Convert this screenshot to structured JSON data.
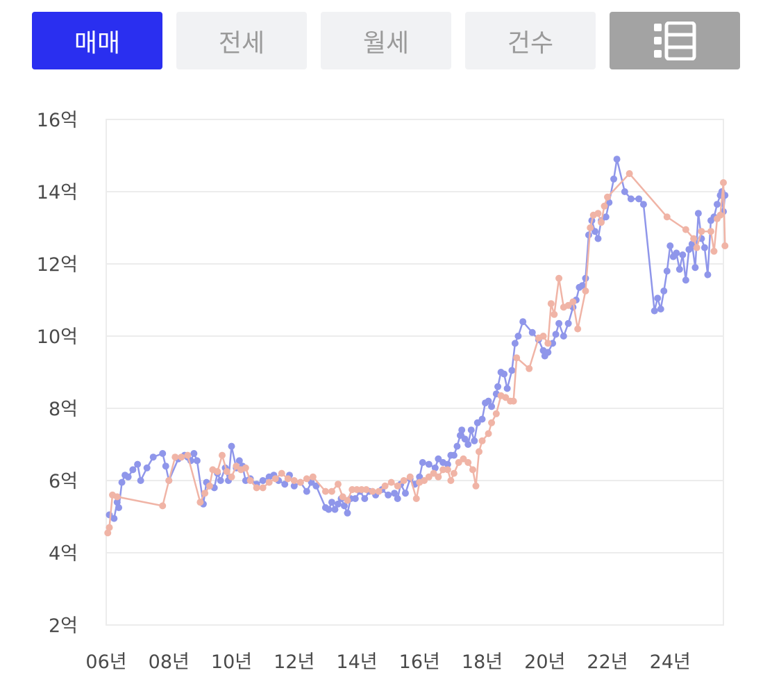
{
  "tabs": [
    {
      "label": "매매",
      "active": true
    },
    {
      "label": "전세",
      "active": false
    },
    {
      "label": "월세",
      "active": false
    },
    {
      "label": "건수",
      "active": false
    }
  ],
  "list_button_icon": "list-view-icon",
  "colors": {
    "active_tab": "#2a2ff0",
    "inactive_tab_bg": "#f1f2f4",
    "inactive_tab_text": "#9a9a9a",
    "list_button_bg": "#a3a3a3",
    "series_1": "#8f96ea",
    "series_2": "#f0b4a6"
  },
  "chart_data": {
    "type": "line",
    "title": "",
    "xlabel": "",
    "ylabel": "",
    "ylim": [
      2,
      16
    ],
    "xlim": [
      2006.0,
      2025.7
    ],
    "yticks": [
      {
        "value": 16,
        "label": "16억"
      },
      {
        "value": 14,
        "label": "14억"
      },
      {
        "value": 12,
        "label": "12억"
      },
      {
        "value": 10,
        "label": "10억"
      },
      {
        "value": 8,
        "label": "8억"
      },
      {
        "value": 6,
        "label": "6억"
      },
      {
        "value": 4,
        "label": "4억"
      },
      {
        "value": 2,
        "label": "2억"
      }
    ],
    "xticks": [
      {
        "value": 2006,
        "label": "06년"
      },
      {
        "value": 2008,
        "label": "08년"
      },
      {
        "value": 2010,
        "label": "10년"
      },
      {
        "value": 2012,
        "label": "12년"
      },
      {
        "value": 2014,
        "label": "14년"
      },
      {
        "value": 2016,
        "label": "16년"
      },
      {
        "value": 2018,
        "label": "18년"
      },
      {
        "value": 2020,
        "label": "20년"
      },
      {
        "value": 2022,
        "label": "22년"
      },
      {
        "value": 2024,
        "label": "24년"
      }
    ],
    "grid": true,
    "series": [
      {
        "color": "#8f96ea",
        "points": [
          [
            2006.1,
            5.05
          ],
          [
            2006.25,
            4.95
          ],
          [
            2006.35,
            5.4
          ],
          [
            2006.4,
            5.25
          ],
          [
            2006.5,
            5.95
          ],
          [
            2006.6,
            6.15
          ],
          [
            2006.7,
            6.1
          ],
          [
            2006.85,
            6.3
          ],
          [
            2007.0,
            6.45
          ],
          [
            2007.1,
            6.0
          ],
          [
            2007.3,
            6.35
          ],
          [
            2007.5,
            6.65
          ],
          [
            2007.8,
            6.75
          ],
          [
            2007.9,
            6.4
          ],
          [
            2008.0,
            6.0
          ],
          [
            2008.3,
            6.6
          ],
          [
            2008.5,
            6.7
          ],
          [
            2008.6,
            6.65
          ],
          [
            2008.7,
            6.55
          ],
          [
            2008.8,
            6.75
          ],
          [
            2008.9,
            6.55
          ],
          [
            2009.1,
            5.35
          ],
          [
            2009.2,
            5.95
          ],
          [
            2009.3,
            5.85
          ],
          [
            2009.45,
            5.8
          ],
          [
            2009.55,
            6.2
          ],
          [
            2009.65,
            6.0
          ],
          [
            2009.8,
            6.35
          ],
          [
            2009.9,
            6.0
          ],
          [
            2010.0,
            6.95
          ],
          [
            2010.15,
            6.35
          ],
          [
            2010.25,
            6.55
          ],
          [
            2010.35,
            6.4
          ],
          [
            2010.45,
            6.0
          ],
          [
            2010.6,
            6.05
          ],
          [
            2010.8,
            5.9
          ],
          [
            2011.0,
            6.0
          ],
          [
            2011.2,
            6.1
          ],
          [
            2011.35,
            6.15
          ],
          [
            2011.5,
            6.0
          ],
          [
            2011.7,
            5.9
          ],
          [
            2011.85,
            6.15
          ],
          [
            2012.0,
            5.85
          ],
          [
            2012.2,
            5.95
          ],
          [
            2012.4,
            5.7
          ],
          [
            2012.55,
            5.95
          ],
          [
            2012.7,
            5.85
          ],
          [
            2013.0,
            5.25
          ],
          [
            2013.1,
            5.2
          ],
          [
            2013.2,
            5.4
          ],
          [
            2013.3,
            5.2
          ],
          [
            2013.4,
            5.35
          ],
          [
            2013.5,
            5.5
          ],
          [
            2013.6,
            5.3
          ],
          [
            2013.7,
            5.1
          ],
          [
            2013.8,
            5.5
          ],
          [
            2013.95,
            5.5
          ],
          [
            2014.1,
            5.7
          ],
          [
            2014.25,
            5.5
          ],
          [
            2014.4,
            5.7
          ],
          [
            2014.6,
            5.6
          ],
          [
            2014.8,
            5.75
          ],
          [
            2015.0,
            5.6
          ],
          [
            2015.2,
            5.65
          ],
          [
            2015.3,
            5.5
          ],
          [
            2015.4,
            5.9
          ],
          [
            2015.55,
            5.65
          ],
          [
            2015.7,
            6.05
          ],
          [
            2015.85,
            5.9
          ],
          [
            2016.0,
            6.1
          ],
          [
            2016.1,
            6.5
          ],
          [
            2016.3,
            6.45
          ],
          [
            2016.5,
            6.35
          ],
          [
            2016.6,
            6.6
          ],
          [
            2016.75,
            6.5
          ],
          [
            2016.9,
            6.45
          ],
          [
            2017.0,
            6.7
          ],
          [
            2017.1,
            6.7
          ],
          [
            2017.2,
            6.95
          ],
          [
            2017.3,
            7.25
          ],
          [
            2017.35,
            7.4
          ],
          [
            2017.45,
            7.15
          ],
          [
            2017.55,
            7.0
          ],
          [
            2017.65,
            7.4
          ],
          [
            2017.75,
            7.1
          ],
          [
            2017.85,
            7.6
          ],
          [
            2018.0,
            7.7
          ],
          [
            2018.1,
            8.15
          ],
          [
            2018.2,
            8.2
          ],
          [
            2018.3,
            8.05
          ],
          [
            2018.45,
            8.4
          ],
          [
            2018.5,
            8.6
          ],
          [
            2018.6,
            9.0
          ],
          [
            2018.7,
            8.95
          ],
          [
            2018.8,
            8.55
          ],
          [
            2018.95,
            9.05
          ],
          [
            2019.05,
            9.8
          ],
          [
            2019.15,
            10.0
          ],
          [
            2019.3,
            10.4
          ],
          [
            2019.6,
            10.1
          ],
          [
            2019.8,
            9.9
          ],
          [
            2019.95,
            9.6
          ],
          [
            2020.0,
            9.45
          ],
          [
            2020.1,
            9.55
          ],
          [
            2020.25,
            9.8
          ],
          [
            2020.35,
            10.05
          ],
          [
            2020.45,
            10.35
          ],
          [
            2020.6,
            10.0
          ],
          [
            2020.75,
            10.35
          ],
          [
            2020.9,
            10.8
          ],
          [
            2021.0,
            11.0
          ],
          [
            2021.1,
            11.35
          ],
          [
            2021.2,
            11.4
          ],
          [
            2021.3,
            11.6
          ],
          [
            2021.4,
            12.8
          ],
          [
            2021.5,
            13.2
          ],
          [
            2021.6,
            12.9
          ],
          [
            2021.7,
            12.7
          ],
          [
            2021.8,
            13.2
          ],
          [
            2021.95,
            13.3
          ],
          [
            2022.05,
            13.7
          ],
          [
            2022.2,
            14.35
          ],
          [
            2022.3,
            14.9
          ],
          [
            2022.55,
            14.0
          ],
          [
            2022.75,
            13.8
          ],
          [
            2023.0,
            13.8
          ],
          [
            2023.15,
            13.65
          ],
          [
            2023.5,
            10.7
          ],
          [
            2023.6,
            11.05
          ],
          [
            2023.7,
            10.75
          ],
          [
            2023.8,
            11.25
          ],
          [
            2023.9,
            11.8
          ],
          [
            2024.0,
            12.5
          ],
          [
            2024.1,
            12.2
          ],
          [
            2024.2,
            12.3
          ],
          [
            2024.3,
            11.85
          ],
          [
            2024.4,
            12.25
          ],
          [
            2024.5,
            11.55
          ],
          [
            2024.6,
            12.4
          ],
          [
            2024.7,
            12.55
          ],
          [
            2024.8,
            11.9
          ],
          [
            2024.9,
            13.4
          ],
          [
            2025.0,
            12.7
          ],
          [
            2025.1,
            12.45
          ],
          [
            2025.2,
            11.7
          ],
          [
            2025.3,
            13.2
          ],
          [
            2025.4,
            13.3
          ],
          [
            2025.5,
            13.65
          ],
          [
            2025.6,
            13.9
          ],
          [
            2025.65,
            14.0
          ],
          [
            2025.7,
            13.45
          ],
          [
            2025.75,
            13.9
          ]
        ]
      },
      {
        "color": "#f0b4a6",
        "points": [
          [
            2006.05,
            4.55
          ],
          [
            2006.1,
            4.7
          ],
          [
            2006.2,
            5.6
          ],
          [
            2006.35,
            5.55
          ],
          [
            2007.8,
            5.3
          ],
          [
            2008.0,
            6.0
          ],
          [
            2008.2,
            6.65
          ],
          [
            2008.4,
            6.65
          ],
          [
            2008.6,
            6.7
          ],
          [
            2009.0,
            5.4
          ],
          [
            2009.15,
            5.65
          ],
          [
            2009.3,
            5.85
          ],
          [
            2009.4,
            6.3
          ],
          [
            2009.55,
            6.25
          ],
          [
            2009.7,
            6.7
          ],
          [
            2009.85,
            6.25
          ],
          [
            2010.0,
            6.1
          ],
          [
            2010.15,
            6.4
          ],
          [
            2010.3,
            6.3
          ],
          [
            2010.45,
            6.35
          ],
          [
            2010.6,
            6.0
          ],
          [
            2010.8,
            5.8
          ],
          [
            2011.0,
            5.8
          ],
          [
            2011.2,
            5.95
          ],
          [
            2011.4,
            6.05
          ],
          [
            2011.6,
            6.2
          ],
          [
            2011.8,
            6.05
          ],
          [
            2012.0,
            6.0
          ],
          [
            2012.2,
            5.95
          ],
          [
            2012.4,
            6.05
          ],
          [
            2012.6,
            6.1
          ],
          [
            2013.0,
            5.7
          ],
          [
            2013.2,
            5.7
          ],
          [
            2013.4,
            5.9
          ],
          [
            2013.55,
            5.55
          ],
          [
            2013.7,
            5.45
          ],
          [
            2013.85,
            5.75
          ],
          [
            2014.0,
            5.75
          ],
          [
            2014.15,
            5.75
          ],
          [
            2014.3,
            5.75
          ],
          [
            2014.5,
            5.7
          ],
          [
            2014.7,
            5.7
          ],
          [
            2014.9,
            5.85
          ],
          [
            2015.1,
            5.95
          ],
          [
            2015.3,
            5.85
          ],
          [
            2015.5,
            6.0
          ],
          [
            2015.7,
            6.1
          ],
          [
            2015.9,
            5.5
          ],
          [
            2016.0,
            5.95
          ],
          [
            2016.15,
            6.0
          ],
          [
            2016.3,
            6.1
          ],
          [
            2016.45,
            6.2
          ],
          [
            2016.6,
            6.1
          ],
          [
            2016.75,
            6.3
          ],
          [
            2016.9,
            6.3
          ],
          [
            2017.0,
            6.0
          ],
          [
            2017.1,
            6.2
          ],
          [
            2017.25,
            6.5
          ],
          [
            2017.4,
            6.6
          ],
          [
            2017.55,
            6.5
          ],
          [
            2017.7,
            6.3
          ],
          [
            2017.8,
            5.85
          ],
          [
            2017.9,
            6.8
          ],
          [
            2018.0,
            7.1
          ],
          [
            2018.2,
            7.3
          ],
          [
            2018.3,
            7.6
          ],
          [
            2018.45,
            7.85
          ],
          [
            2018.6,
            8.35
          ],
          [
            2018.75,
            8.3
          ],
          [
            2018.9,
            8.2
          ],
          [
            2019.0,
            8.2
          ],
          [
            2019.1,
            9.4
          ],
          [
            2019.5,
            9.1
          ],
          [
            2019.8,
            9.95
          ],
          [
            2019.95,
            10.0
          ],
          [
            2020.1,
            9.8
          ],
          [
            2020.2,
            10.9
          ],
          [
            2020.3,
            10.6
          ],
          [
            2020.45,
            11.6
          ],
          [
            2020.6,
            10.8
          ],
          [
            2020.75,
            10.85
          ],
          [
            2020.9,
            10.95
          ],
          [
            2021.05,
            10.2
          ],
          [
            2021.3,
            11.25
          ],
          [
            2021.45,
            13.0
          ],
          [
            2021.55,
            13.35
          ],
          [
            2021.7,
            13.4
          ],
          [
            2021.8,
            13.15
          ],
          [
            2021.9,
            13.6
          ],
          [
            2022.0,
            13.85
          ],
          [
            2022.7,
            14.5
          ],
          [
            2023.9,
            13.3
          ],
          [
            2024.5,
            12.95
          ],
          [
            2024.75,
            12.7
          ],
          [
            2024.85,
            12.45
          ],
          [
            2025.0,
            12.9
          ],
          [
            2025.3,
            12.9
          ],
          [
            2025.4,
            12.35
          ],
          [
            2025.5,
            13.25
          ],
          [
            2025.6,
            13.35
          ],
          [
            2025.7,
            14.25
          ],
          [
            2025.75,
            12.5
          ]
        ]
      }
    ]
  }
}
